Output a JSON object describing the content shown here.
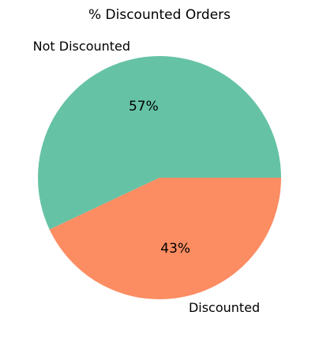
{
  "chart_data": {
    "type": "pie",
    "title": "% Discounted Orders",
    "slices": [
      {
        "label": "Not Discounted",
        "value": 57,
        "pct_label": "57%",
        "color": "#66c2a5"
      },
      {
        "label": "Discounted",
        "value": 43,
        "pct_label": "43%",
        "color": "#fc8d62"
      }
    ],
    "start_angle_deg": 0,
    "direction": "counterclockwise"
  }
}
